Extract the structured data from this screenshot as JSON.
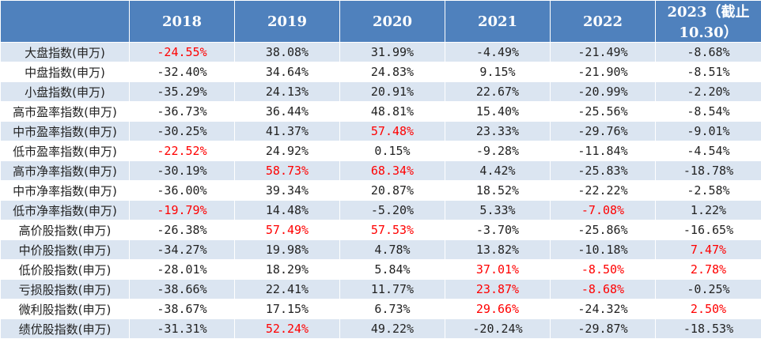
{
  "table": {
    "header": [
      "",
      "2018",
      "2019",
      "2020",
      "2021",
      "2022",
      "2023（截止10.30）"
    ],
    "highlight_color": "#ff0000",
    "header_bg": "#4f81bd",
    "rows": [
      {
        "label": "大盘指数(申万)",
        "values": [
          "-24.55%",
          "38.08%",
          "31.99%",
          "-4.49%",
          "-21.49%",
          "-8.68%"
        ],
        "highlight": [
          true,
          false,
          false,
          false,
          false,
          false
        ]
      },
      {
        "label": "中盘指数(申万)",
        "values": [
          "-32.40%",
          "34.64%",
          "24.83%",
          "9.15%",
          "-21.90%",
          "-8.51%"
        ],
        "highlight": [
          false,
          false,
          false,
          false,
          false,
          false
        ]
      },
      {
        "label": "小盘指数(申万)",
        "values": [
          "-35.29%",
          "24.13%",
          "20.91%",
          "22.67%",
          "-20.99%",
          "-2.20%"
        ],
        "highlight": [
          false,
          false,
          false,
          false,
          false,
          false
        ]
      },
      {
        "label": "高市盈率指数(申万)",
        "values": [
          "-36.73%",
          "36.44%",
          "48.81%",
          "15.40%",
          "-25.56%",
          "-8.54%"
        ],
        "highlight": [
          false,
          false,
          false,
          false,
          false,
          false
        ]
      },
      {
        "label": "中市盈率指数(申万)",
        "values": [
          "-30.25%",
          "41.37%",
          "57.48%",
          "23.33%",
          "-29.76%",
          "-9.01%"
        ],
        "highlight": [
          false,
          false,
          true,
          false,
          false,
          false
        ]
      },
      {
        "label": "低市盈率指数(申万)",
        "values": [
          "-22.52%",
          "24.92%",
          "0.15%",
          "-9.28%",
          "-11.84%",
          "-4.54%"
        ],
        "highlight": [
          true,
          false,
          false,
          false,
          false,
          false
        ]
      },
      {
        "label": "高市净率指数(申万)",
        "values": [
          "-30.19%",
          "58.73%",
          "68.34%",
          "4.42%",
          "-25.83%",
          "-18.78%"
        ],
        "highlight": [
          false,
          true,
          true,
          false,
          false,
          false
        ]
      },
      {
        "label": "中市净率指数(申万)",
        "values": [
          "-36.00%",
          "39.34%",
          "20.87%",
          "18.52%",
          "-22.22%",
          "-2.58%"
        ],
        "highlight": [
          false,
          false,
          false,
          false,
          false,
          false
        ]
      },
      {
        "label": "低市净率指数(申万)",
        "values": [
          "-19.79%",
          "14.48%",
          "-5.20%",
          "5.33%",
          "-7.08%",
          "1.22%"
        ],
        "highlight": [
          true,
          false,
          false,
          false,
          true,
          false
        ]
      },
      {
        "label": "高价股指数(申万)",
        "values": [
          "-26.38%",
          "57.49%",
          "57.53%",
          "-3.70%",
          "-25.86%",
          "-16.65%"
        ],
        "highlight": [
          false,
          true,
          true,
          false,
          false,
          false
        ]
      },
      {
        "label": "中价股指数(申万)",
        "values": [
          "-34.27%",
          "19.98%",
          "4.78%",
          "13.82%",
          "-10.18%",
          "7.47%"
        ],
        "highlight": [
          false,
          false,
          false,
          false,
          false,
          true
        ]
      },
      {
        "label": "低价股指数(申万)",
        "values": [
          "-28.01%",
          "18.29%",
          "5.84%",
          "37.01%",
          "-8.50%",
          "2.78%"
        ],
        "highlight": [
          false,
          false,
          false,
          true,
          true,
          true
        ]
      },
      {
        "label": "亏损股指数(申万)",
        "values": [
          "-38.66%",
          "22.41%",
          "11.77%",
          "23.87%",
          "-8.68%",
          "-0.25%"
        ],
        "highlight": [
          false,
          false,
          false,
          true,
          true,
          false
        ]
      },
      {
        "label": "微利股指数(申万)",
        "values": [
          "-38.67%",
          "17.15%",
          "6.73%",
          "29.66%",
          "-24.32%",
          "2.50%"
        ],
        "highlight": [
          false,
          false,
          false,
          true,
          false,
          true
        ]
      },
      {
        "label": "绩优股指数(申万)",
        "values": [
          "-31.31%",
          "52.24%",
          "49.22%",
          "-20.24%",
          "-29.87%",
          "-18.53%"
        ],
        "highlight": [
          false,
          true,
          false,
          false,
          false,
          false
        ]
      }
    ]
  }
}
